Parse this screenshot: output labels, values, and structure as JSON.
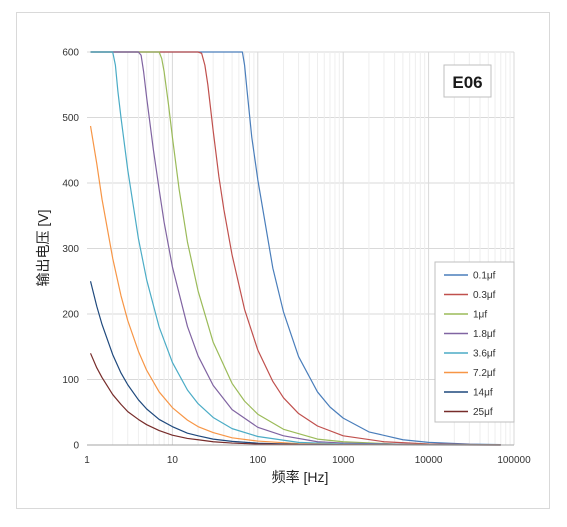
{
  "chart_data": {
    "type": "line",
    "x_scale": "log",
    "xlim": [
      1,
      100000
    ],
    "ylim": [
      0,
      600
    ],
    "xlabel": "频率 [Hz]",
    "ylabel": "输出电压 [V]",
    "badge": "E06",
    "grid": true,
    "legend_position": "bottom-right",
    "x_ticks": [
      {
        "v": 1,
        "label": "1"
      },
      {
        "v": 10,
        "label": "10"
      },
      {
        "v": 100,
        "label": "100"
      },
      {
        "v": 1000,
        "label": "1000"
      },
      {
        "v": 10000,
        "label": "10000"
      },
      {
        "v": 100000,
        "label": "100000"
      }
    ],
    "y_ticks": [
      {
        "v": 0,
        "label": "0"
      },
      {
        "v": 100,
        "label": "100"
      },
      {
        "v": 200,
        "label": "200"
      },
      {
        "v": 300,
        "label": "300"
      },
      {
        "v": 400,
        "label": "400"
      },
      {
        "v": 500,
        "label": "500"
      },
      {
        "v": 600,
        "label": "600"
      }
    ],
    "series": [
      {
        "name": "0.1μf",
        "color": "#4a7ebb",
        "points": [
          [
            1.1,
            600
          ],
          [
            30,
            600
          ],
          [
            60,
            600
          ],
          [
            66,
            600
          ],
          [
            70,
            580
          ],
          [
            75,
            540
          ],
          [
            85,
            470
          ],
          [
            100,
            405
          ],
          [
            150,
            270
          ],
          [
            200,
            203
          ],
          [
            300,
            135
          ],
          [
            500,
            81
          ],
          [
            700,
            58
          ],
          [
            1000,
            41
          ],
          [
            2000,
            20
          ],
          [
            5000,
            8
          ],
          [
            10000,
            4
          ],
          [
            30000,
            1.4
          ],
          [
            70000,
            0.6
          ]
        ]
      },
      {
        "name": "0.3μf",
        "color": "#c0504d",
        "points": [
          [
            1.1,
            600
          ],
          [
            10,
            600
          ],
          [
            20,
            600
          ],
          [
            22,
            598
          ],
          [
            24,
            580
          ],
          [
            26,
            550
          ],
          [
            30,
            480
          ],
          [
            35,
            410
          ],
          [
            40,
            360
          ],
          [
            50,
            290
          ],
          [
            70,
            207
          ],
          [
            100,
            145
          ],
          [
            150,
            97
          ],
          [
            200,
            72
          ],
          [
            300,
            48
          ],
          [
            500,
            29
          ],
          [
            1000,
            14
          ],
          [
            3000,
            5
          ],
          [
            10000,
            1.5
          ],
          [
            70000,
            0.2
          ]
        ]
      },
      {
        "name": "1μf",
        "color": "#9bbb59",
        "points": [
          [
            1.1,
            600
          ],
          [
            5,
            600
          ],
          [
            7,
            600
          ],
          [
            7.5,
            590
          ],
          [
            8,
            570
          ],
          [
            9,
            520
          ],
          [
            10,
            470
          ],
          [
            12,
            390
          ],
          [
            15,
            310
          ],
          [
            20,
            235
          ],
          [
            30,
            157
          ],
          [
            50,
            94
          ],
          [
            70,
            67
          ],
          [
            100,
            47
          ],
          [
            200,
            24
          ],
          [
            500,
            9
          ],
          [
            1000,
            5
          ],
          [
            5000,
            1
          ],
          [
            70000,
            0.1
          ]
        ]
      },
      {
        "name": "1.8μf",
        "color": "#8064a2",
        "points": [
          [
            1.1,
            600
          ],
          [
            3,
            600
          ],
          [
            4,
            600
          ],
          [
            4.3,
            595
          ],
          [
            4.6,
            570
          ],
          [
            5,
            530
          ],
          [
            6,
            450
          ],
          [
            7,
            390
          ],
          [
            8,
            340
          ],
          [
            10,
            272
          ],
          [
            15,
            181
          ],
          [
            20,
            136
          ],
          [
            30,
            91
          ],
          [
            50,
            54
          ],
          [
            100,
            27
          ],
          [
            200,
            14
          ],
          [
            500,
            5
          ],
          [
            1000,
            3
          ],
          [
            10000,
            0.3
          ],
          [
            70000,
            0.05
          ]
        ]
      },
      {
        "name": "3.6μf",
        "color": "#4bacc6",
        "points": [
          [
            1.1,
            600
          ],
          [
            1.8,
            600
          ],
          [
            2,
            600
          ],
          [
            2.15,
            580
          ],
          [
            2.3,
            540
          ],
          [
            2.5,
            500
          ],
          [
            3,
            420
          ],
          [
            4,
            315
          ],
          [
            5,
            252
          ],
          [
            7,
            180
          ],
          [
            10,
            126
          ],
          [
            15,
            84
          ],
          [
            20,
            63
          ],
          [
            30,
            42
          ],
          [
            50,
            25
          ],
          [
            100,
            13
          ],
          [
            300,
            4
          ],
          [
            1000,
            1.3
          ],
          [
            70000,
            0.02
          ]
        ]
      },
      {
        "name": "7.2μf",
        "color": "#f79646",
        "points": [
          [
            1.1,
            487
          ],
          [
            1.3,
            430
          ],
          [
            1.5,
            375
          ],
          [
            2,
            285
          ],
          [
            2.5,
            228
          ],
          [
            3,
            190
          ],
          [
            4,
            143
          ],
          [
            5,
            114
          ],
          [
            7,
            81
          ],
          [
            10,
            57
          ],
          [
            15,
            38
          ],
          [
            20,
            28
          ],
          [
            30,
            19
          ],
          [
            50,
            11
          ],
          [
            100,
            6
          ],
          [
            300,
            2
          ],
          [
            1000,
            0.6
          ],
          [
            70000,
            0.01
          ]
        ]
      },
      {
        "name": "14μf",
        "color": "#1f497d",
        "points": [
          [
            1.1,
            250
          ],
          [
            1.3,
            212
          ],
          [
            1.5,
            184
          ],
          [
            2,
            138
          ],
          [
            2.5,
            110
          ],
          [
            3,
            92
          ],
          [
            4,
            69
          ],
          [
            5,
            55
          ],
          [
            7,
            39
          ],
          [
            10,
            28
          ],
          [
            15,
            18
          ],
          [
            20,
            14
          ],
          [
            30,
            9
          ],
          [
            50,
            5.5
          ],
          [
            100,
            2.8
          ],
          [
            300,
            0.9
          ],
          [
            1000,
            0.3
          ],
          [
            70000,
            0.005
          ]
        ]
      },
      {
        "name": "25μf",
        "color": "#772c2a",
        "points": [
          [
            1.1,
            140
          ],
          [
            1.3,
            118
          ],
          [
            1.5,
            103
          ],
          [
            2,
            77
          ],
          [
            2.5,
            62
          ],
          [
            3,
            51
          ],
          [
            4,
            39
          ],
          [
            5,
            31
          ],
          [
            7,
            22
          ],
          [
            10,
            15
          ],
          [
            15,
            10
          ],
          [
            20,
            8
          ],
          [
            30,
            5
          ],
          [
            50,
            3
          ],
          [
            100,
            1.5
          ],
          [
            300,
            0.5
          ],
          [
            1000,
            0.15
          ],
          [
            70000,
            0.002
          ]
        ]
      }
    ]
  }
}
